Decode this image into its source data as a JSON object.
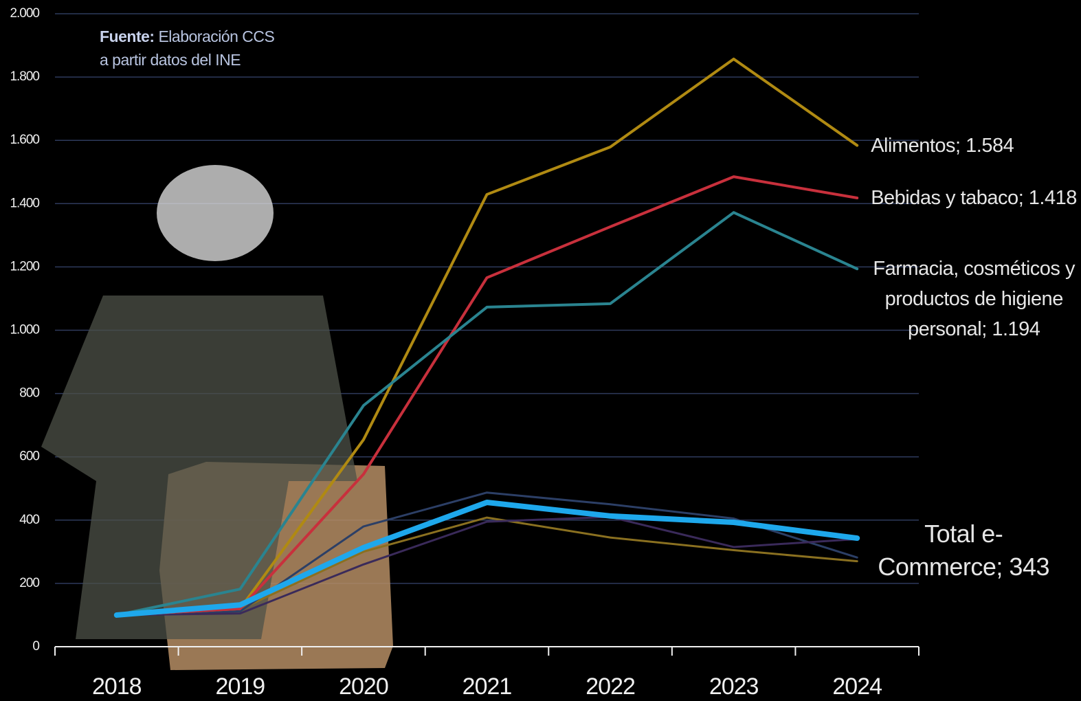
{
  "chart_data": {
    "type": "line",
    "source_label": "Fuente:",
    "source": "Elaboración CCS a partir datos del INE",
    "categories": [
      "2018",
      "2019",
      "2020",
      "2021",
      "2022",
      "2023",
      "2024"
    ],
    "ylim": [
      0,
      2000
    ],
    "yticks": [
      0,
      200,
      400,
      600,
      800,
      {
        "value": 1000,
        "label": "1.000"
      },
      {
        "value": 1200,
        "label": "1.200"
      },
      {
        "value": 1400,
        "label": "1.400"
      },
      {
        "value": 1600,
        "label": "1.600"
      },
      {
        "value": 1800,
        "label": "1.800"
      },
      {
        "value": 2000,
        "label": "2.000"
      }
    ],
    "grid": true,
    "series": [
      {
        "color": "#8a7020",
        "width": 3,
        "values": [
          100,
          118,
          300,
          408,
          345,
          305,
          270
        ]
      },
      {
        "color": "#2c3f66",
        "width": 3,
        "values": [
          100,
          112,
          380,
          487,
          450,
          405,
          282
        ]
      },
      {
        "color": "#3a2a5a",
        "width": 3,
        "values": [
          100,
          105,
          260,
          395,
          410,
          315,
          340
        ]
      },
      {
        "name": "Alimentos; 1.584",
        "color": "#b08a12",
        "width": 4,
        "values": [
          100,
          120,
          654,
          1429,
          1579,
          1857,
          1584
        ]
      },
      {
        "name": "Bebidas y tabaco; 1.418",
        "color": "#c8303c",
        "width": 4,
        "values": [
          100,
          120,
          545,
          1166,
          1327,
          1485,
          1418
        ]
      },
      {
        "name": "Farmacia, cosméticos y productos de higiene personal; 1.194",
        "color": "#2a8490",
        "width": 4,
        "values": [
          100,
          182,
          762,
          1073,
          1084,
          1372,
          1194
        ]
      },
      {
        "name": "Total e-Commerce; 343",
        "color": "#1ea8ec",
        "width": 8,
        "values": [
          100,
          132,
          313,
          456,
          413,
          393,
          343
        ]
      }
    ]
  }
}
